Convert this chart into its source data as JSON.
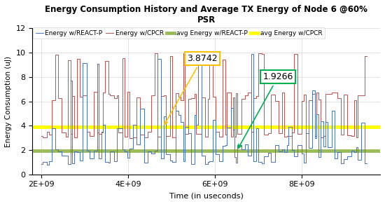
{
  "title_line1": "Energy Consumption History and Average TX Energy of Node 6 @60%",
  "title_line2": "PSR",
  "xlabel": "Time (in useconds)",
  "ylabel": "Energy Consumption (uJ)",
  "xlim": [
    1800000000.0,
    9800000000.0
  ],
  "ylim": [
    0,
    12
  ],
  "xticks": [
    2000000000.0,
    4000000000.0,
    6000000000.0,
    8000000000.0
  ],
  "xtick_labels": [
    "2E+09",
    "4E+09",
    "6E+09",
    "8E+09"
  ],
  "yticks": [
    0,
    2,
    4,
    6,
    8,
    10,
    12
  ],
  "avg_react_p": 1.9266,
  "avg_cpcr": 3.8742,
  "color_react_p": "#4472C4",
  "color_cpcr": "#C0504D",
  "color_avg_react_p": "#9BBB59",
  "color_avg_cpcr": "#FFFF00",
  "legend_labels": [
    "Energy w/REACT-P",
    "Energy w/CPCR",
    "avg Energy w/REACT-P",
    "avg Energy w/CPCR"
  ],
  "annotation_cpcr": "3.8742",
  "annotation_react_p": "1.9266",
  "seed": 12,
  "x_start": 2000000000.0,
  "x_end": 9500000000.0
}
